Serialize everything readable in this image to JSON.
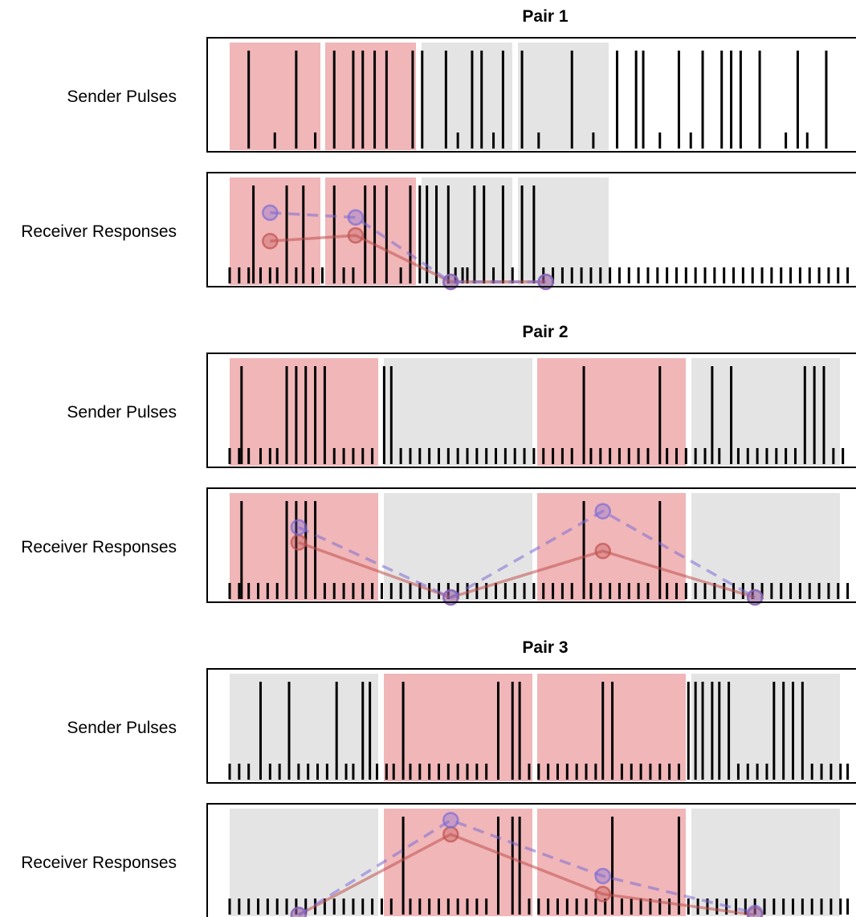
{
  "figure": {
    "sender_label": "Sender Pulses",
    "receiver_label": "Receiver Responses",
    "colors": {
      "active_block": "#f0b6b8",
      "inactive_block": "#e4e4e4",
      "spike": "#000000",
      "frame": "#000000",
      "solid_line": "#c0504d",
      "dashed_line": "#7b6bd6"
    },
    "line_styles": {
      "first_series": "solid",
      "second_series": "dashed"
    },
    "pairs": [
      {
        "title": "Pair 1",
        "blocks": [
          "active",
          "active",
          "inactive",
          "inactive"
        ],
        "sender_tall": [
          0.8,
          2.8,
          4.4,
          5.2,
          5.6,
          6.1,
          6.6,
          7.7,
          8.1,
          9.1,
          10.2,
          10.6,
          11.5,
          12.3,
          14.4,
          16.3,
          17.1,
          17.4,
          18.9,
          19.9,
          20.7,
          21.1,
          21.5,
          22.3,
          23.9,
          25.1
        ],
        "sender_short": [
          1.9,
          3.6,
          9.6,
          11.1,
          13.0,
          15.3,
          18.1,
          19.4,
          23.4,
          24.3
        ],
        "receiver_tall": [
          1.0,
          2.4,
          3.1,
          4.4,
          5.7,
          6.1,
          6.6,
          7.6,
          8.0,
          8.3,
          8.7,
          9.2,
          10.3,
          10.7,
          11.5,
          12.3,
          12.8
        ],
        "receiver_short": [
          0.0,
          0.4,
          0.8,
          1.3,
          1.7,
          2.0,
          2.8,
          3.5,
          3.9,
          4.8,
          5.2,
          7.2,
          9.5,
          9.8,
          10.0,
          11.1,
          11.9,
          13.2,
          13.6,
          14.0,
          14.4,
          14.8,
          15.2,
          15.6,
          16.0,
          16.4,
          16.8,
          17.2,
          17.6,
          18.0,
          18.4,
          18.8,
          19.2,
          19.6,
          20.0,
          20.4,
          20.8,
          21.2,
          21.6,
          22.0,
          22.4,
          22.8,
          23.2,
          23.6,
          24.0,
          24.4,
          24.8,
          25.2,
          25.6,
          26.0
        ],
        "solid_points": [
          [
            1.7,
            0.43
          ],
          [
            5.3,
            0.49
          ],
          [
            9.3,
            0.0
          ],
          [
            13.3,
            0.0
          ]
        ],
        "dashed_points": [
          [
            1.7,
            0.73
          ],
          [
            5.3,
            0.68
          ],
          [
            9.3,
            0.0
          ],
          [
            13.3,
            0.0
          ]
        ]
      },
      {
        "title": "Pair 2",
        "blocks": [
          "active",
          "inactive",
          "active",
          "inactive"
        ],
        "sender_tall": [
          0.5,
          2.4,
          2.8,
          3.2,
          3.6,
          4.0,
          6.5,
          6.8,
          14.9,
          18.1,
          20.3,
          21.1,
          24.2,
          24.6,
          25.0
        ],
        "sender_short": [
          0.0,
          0.4,
          0.8,
          1.3,
          1.7,
          2.0,
          4.4,
          4.8,
          5.2,
          5.6,
          6.0,
          7.2,
          7.6,
          8.0,
          8.4,
          8.8,
          9.2,
          9.6,
          10.0,
          10.4,
          10.8,
          11.2,
          11.6,
          12.0,
          12.4,
          12.8,
          13.2,
          13.6,
          14.0,
          14.4,
          15.2,
          15.6,
          16.0,
          16.4,
          16.8,
          17.2,
          17.6,
          18.4,
          18.8,
          19.2,
          19.6,
          20.0,
          20.6,
          21.4,
          21.8,
          22.2,
          22.6,
          23.0,
          23.4,
          23.8,
          25.4,
          25.8
        ],
        "receiver_tall": [
          0.5,
          2.4,
          2.8,
          3.2,
          3.6,
          14.9,
          18.1
        ],
        "receiver_short": [
          0.0,
          0.4,
          0.8,
          1.2,
          1.6,
          2.0,
          4.0,
          4.4,
          4.8,
          5.2,
          5.6,
          6.0,
          6.4,
          6.8,
          7.2,
          7.6,
          8.0,
          8.4,
          8.8,
          9.2,
          9.6,
          10.0,
          10.4,
          10.8,
          11.2,
          11.6,
          12.0,
          12.4,
          12.8,
          13.2,
          13.6,
          14.0,
          14.4,
          15.2,
          15.6,
          16.0,
          16.4,
          16.8,
          17.2,
          17.6,
          18.4,
          18.8,
          19.2,
          19.6,
          20.0,
          20.4,
          20.8,
          21.2,
          21.6,
          22.0,
          22.4,
          22.8,
          23.2,
          23.6,
          24.0,
          24.4,
          24.8,
          25.2,
          25.6,
          26.0
        ],
        "solid_points": [
          [
            2.9,
            0.58
          ],
          [
            9.3,
            0.0
          ],
          [
            15.7,
            0.49
          ],
          [
            22.1,
            0.0
          ]
        ],
        "dashed_points": [
          [
            2.9,
            0.74
          ],
          [
            9.3,
            0.0
          ],
          [
            15.7,
            0.91
          ],
          [
            22.1,
            0.0
          ]
        ]
      },
      {
        "title": "Pair 3",
        "blocks": [
          "inactive",
          "active",
          "active",
          "inactive"
        ],
        "sender_tall": [
          1.3,
          2.5,
          4.5,
          5.6,
          5.9,
          7.3,
          11.3,
          11.9,
          12.2,
          15.7,
          16.1,
          19.3,
          19.6,
          19.9,
          20.3,
          20.6,
          21.0,
          22.9,
          23.3,
          23.7,
          24.1
        ],
        "sender_short": [
          0.0,
          0.4,
          0.8,
          1.7,
          2.1,
          2.9,
          3.3,
          3.7,
          4.1,
          4.9,
          5.2,
          6.2,
          6.6,
          6.9,
          7.6,
          8.0,
          8.4,
          8.8,
          9.2,
          9.6,
          10.0,
          10.4,
          10.8,
          12.6,
          13.0,
          13.4,
          13.8,
          14.2,
          14.6,
          15.0,
          15.4,
          16.5,
          16.9,
          17.3,
          17.7,
          18.1,
          18.5,
          18.9,
          21.4,
          21.8,
          22.2,
          22.6,
          24.5,
          24.9,
          25.3,
          25.7,
          26.0
        ],
        "receiver_tall": [
          7.3,
          11.3,
          11.9,
          12.2,
          16.1,
          18.9
        ],
        "receiver_short": [
          0.0,
          0.4,
          0.8,
          1.2,
          1.6,
          2.0,
          2.4,
          2.8,
          3.2,
          3.6,
          4.0,
          4.4,
          4.8,
          5.2,
          5.6,
          6.0,
          6.4,
          6.8,
          7.6,
          8.0,
          8.4,
          8.8,
          9.2,
          9.6,
          10.0,
          10.4,
          10.8,
          12.6,
          13.0,
          13.4,
          13.8,
          14.2,
          14.6,
          15.0,
          15.4,
          15.8,
          16.5,
          16.9,
          17.3,
          17.7,
          18.1,
          18.5,
          19.3,
          19.7,
          20.1,
          20.5,
          20.9,
          21.3,
          21.7,
          22.1,
          22.5,
          22.9,
          23.3,
          23.7,
          24.1,
          24.5,
          24.9,
          25.3,
          25.7,
          26.0
        ],
        "solid_points": [
          [
            2.9,
            -0.02
          ],
          [
            9.3,
            0.83
          ],
          [
            15.7,
            0.2
          ],
          [
            22.1,
            -0.02
          ]
        ],
        "dashed_points": [
          [
            2.9,
            -0.02
          ],
          [
            9.3,
            0.98
          ],
          [
            15.7,
            0.39
          ],
          [
            22.1,
            0.0
          ]
        ]
      }
    ]
  }
}
